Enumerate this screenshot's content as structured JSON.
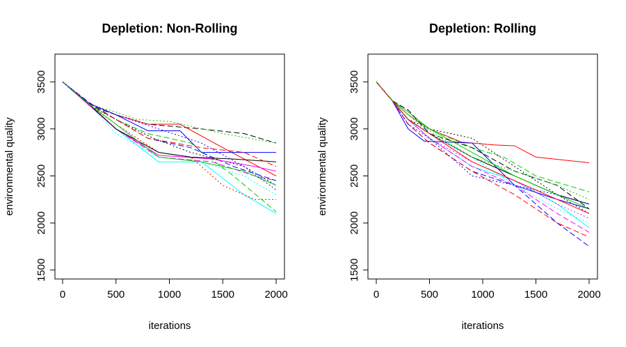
{
  "chart_data": [
    {
      "type": "line",
      "title": "Depletion: Non-Rolling",
      "xlabel": "iterations",
      "ylabel": "environmental quality",
      "xlim": [
        0,
        2000
      ],
      "ylim": [
        1500,
        3700
      ],
      "xticks": [
        "0",
        "500",
        "1000",
        "1500",
        "2000"
      ],
      "yticks": [
        "1500",
        "2000",
        "2500",
        "3000",
        "3500"
      ],
      "grid": false,
      "legend": "none",
      "series": [
        {
          "color": "#000000",
          "dash": "8,4",
          "x": [
            0,
            250,
            500,
            800,
            1300,
            1700,
            2000
          ],
          "y": [
            3500,
            3250,
            3150,
            3050,
            3000,
            2950,
            2850
          ]
        },
        {
          "color": "#ff0000",
          "dash": "",
          "x": [
            0,
            250,
            500,
            800,
            1100,
            1500,
            2000
          ],
          "y": [
            3500,
            3270,
            3150,
            3050,
            3050,
            2800,
            2500
          ]
        },
        {
          "color": "#00cd00",
          "dash": "2,3",
          "x": [
            0,
            250,
            500,
            700,
            1000,
            1500,
            2000
          ],
          "y": [
            3500,
            3260,
            3180,
            3100,
            3080,
            2950,
            2850
          ]
        },
        {
          "color": "#0000ff",
          "dash": "",
          "x": [
            0,
            250,
            500,
            800,
            1100,
            1300,
            2000
          ],
          "y": [
            3500,
            3270,
            3150,
            2980,
            2980,
            2750,
            2750
          ]
        },
        {
          "color": "#00ffff",
          "dash": "",
          "x": [
            0,
            250,
            500,
            900,
            1300,
            1700,
            2000
          ],
          "y": [
            3500,
            3260,
            3000,
            2650,
            2650,
            2300,
            2100
          ]
        },
        {
          "color": "#ff00ff",
          "dash": "8,4",
          "x": [
            0,
            250,
            500,
            900,
            1400,
            1800,
            2000
          ],
          "y": [
            3500,
            3250,
            3000,
            2700,
            2650,
            2500,
            2450
          ]
        },
        {
          "color": "#000000",
          "dash": "2,3",
          "x": [
            0,
            250,
            500,
            850,
            1200,
            1700,
            2000
          ],
          "y": [
            3500,
            3250,
            3100,
            2900,
            2750,
            2600,
            2400
          ]
        },
        {
          "color": "#ff0000",
          "dash": "2,3",
          "x": [
            0,
            250,
            500,
            900,
            1200,
            1500,
            1800,
            2000
          ],
          "y": [
            3500,
            3250,
            3050,
            2750,
            2700,
            2400,
            2250,
            2250
          ]
        },
        {
          "color": "#00cd00",
          "dash": "8,4",
          "x": [
            0,
            250,
            500,
            800,
            1200,
            1600,
            2000
          ],
          "y": [
            3500,
            3260,
            3100,
            2950,
            2850,
            2500,
            2120
          ]
        },
        {
          "color": "#0000ff",
          "dash": "8,4",
          "x": [
            0,
            250,
            500,
            800,
            1200,
            1600,
            2000
          ],
          "y": [
            3500,
            3280,
            3100,
            2900,
            2800,
            2600,
            2450
          ]
        },
        {
          "color": "#00ffff",
          "dash": "2,3",
          "x": [
            0,
            250,
            500,
            900,
            1300,
            1700,
            2000
          ],
          "y": [
            3500,
            3260,
            2950,
            2700,
            2650,
            2500,
            2300
          ]
        },
        {
          "color": "#ff00ff",
          "dash": "",
          "x": [
            0,
            250,
            500,
            900,
            1400,
            1800,
            2000
          ],
          "y": [
            3500,
            3250,
            3000,
            2720,
            2680,
            2600,
            2550
          ]
        },
        {
          "color": "#000000",
          "dash": "",
          "x": [
            0,
            250,
            500,
            900,
            1200,
            1600,
            2000
          ],
          "y": [
            3500,
            3260,
            3000,
            2750,
            2700,
            2680,
            2650
          ]
        },
        {
          "color": "#ff0000",
          "dash": "8,4",
          "x": [
            0,
            250,
            500,
            800,
            1300,
            1700,
            2000
          ],
          "y": [
            3500,
            3270,
            3100,
            2900,
            2800,
            2750,
            2600
          ]
        },
        {
          "color": "#00cd00",
          "dash": "",
          "x": [
            0,
            250,
            500,
            900,
            1300,
            1700,
            2000
          ],
          "y": [
            3500,
            3260,
            3050,
            2700,
            2650,
            2550,
            2400
          ]
        },
        {
          "color": "#0000ff",
          "dash": "2,3",
          "x": [
            0,
            250,
            500,
            900,
            1300,
            1700,
            2000
          ],
          "y": [
            3500,
            3270,
            3150,
            3000,
            2850,
            2600,
            2350
          ]
        }
      ]
    },
    {
      "type": "line",
      "title": "Depletion: Rolling",
      "xlabel": "iterations",
      "ylabel": "environmental quality",
      "xlim": [
        0,
        2000
      ],
      "ylim": [
        1500,
        3700
      ],
      "xticks": [
        "0",
        "500",
        "1000",
        "1500",
        "2000"
      ],
      "yticks": [
        "1500",
        "2000",
        "2500",
        "3000",
        "3500"
      ],
      "grid": false,
      "legend": "none",
      "series": [
        {
          "color": "#ff0000",
          "dash": "",
          "x": [
            0,
            150,
            300,
            500,
            800,
            1100,
            1300,
            1500,
            2000
          ],
          "y": [
            3500,
            3300,
            3150,
            3000,
            2860,
            2830,
            2820,
            2700,
            2640
          ]
        },
        {
          "color": "#0000ff",
          "dash": "8,4",
          "x": [
            0,
            150,
            300,
            500,
            900,
            1300,
            1700,
            2000
          ],
          "y": [
            3500,
            3300,
            3050,
            2850,
            2550,
            2400,
            2000,
            1750
          ]
        },
        {
          "color": "#00cd00",
          "dash": "8,4",
          "x": [
            0,
            150,
            300,
            500,
            900,
            1200,
            1500,
            2000
          ],
          "y": [
            3500,
            3300,
            3150,
            3000,
            2800,
            2700,
            2500,
            2330
          ]
        },
        {
          "color": "#000000",
          "dash": "",
          "x": [
            0,
            150,
            300,
            500,
            900,
            1300,
            1700,
            2000
          ],
          "y": [
            3500,
            3300,
            3100,
            2950,
            2700,
            2500,
            2300,
            2200
          ]
        },
        {
          "color": "#00ffff",
          "dash": "",
          "x": [
            0,
            150,
            300,
            500,
            900,
            1300,
            1700,
            2000
          ],
          "y": [
            3500,
            3300,
            3100,
            2900,
            2600,
            2450,
            2200,
            1950
          ]
        },
        {
          "color": "#ff00ff",
          "dash": "8,4",
          "x": [
            0,
            150,
            300,
            500,
            900,
            1300,
            1700,
            2000
          ],
          "y": [
            3500,
            3300,
            3100,
            2900,
            2600,
            2400,
            2100,
            1900
          ]
        },
        {
          "color": "#0000ff",
          "dash": "",
          "x": [
            0,
            150,
            300,
            450,
            900,
            1300,
            1700,
            2000
          ],
          "y": [
            3500,
            3300,
            3000,
            2870,
            2850,
            2400,
            2250,
            2150
          ]
        },
        {
          "color": "#000000",
          "dash": "2,3",
          "x": [
            0,
            150,
            300,
            500,
            900,
            1300,
            1700,
            2000
          ],
          "y": [
            3500,
            3300,
            3100,
            3000,
            2900,
            2600,
            2300,
            2100
          ]
        },
        {
          "color": "#ff0000",
          "dash": "8,4",
          "x": [
            0,
            150,
            300,
            500,
            900,
            1300,
            1700,
            2000
          ],
          "y": [
            3500,
            3300,
            3050,
            2850,
            2550,
            2300,
            2000,
            1850
          ]
        },
        {
          "color": "#00cd00",
          "dash": "",
          "x": [
            0,
            150,
            300,
            500,
            900,
            1300,
            1700,
            2000
          ],
          "y": [
            3500,
            3300,
            3180,
            3000,
            2750,
            2500,
            2300,
            2150
          ]
        },
        {
          "color": "#ff00ff",
          "dash": "2,3",
          "x": [
            0,
            150,
            300,
            500,
            900,
            1300,
            1700,
            2000
          ],
          "y": [
            3500,
            3300,
            3100,
            2900,
            2650,
            2450,
            2200,
            2050
          ]
        },
        {
          "color": "#00ffff",
          "dash": "2,3",
          "x": [
            0,
            150,
            300,
            500,
            900,
            1300,
            1700,
            2000
          ],
          "y": [
            3500,
            3300,
            3150,
            2950,
            2700,
            2400,
            2150,
            2000
          ]
        },
        {
          "color": "#000000",
          "dash": "8,4",
          "x": [
            0,
            150,
            300,
            500,
            900,
            1300,
            1700,
            2000
          ],
          "y": [
            3500,
            3300,
            3200,
            2950,
            2800,
            2550,
            2400,
            2150
          ]
        },
        {
          "color": "#0000ff",
          "dash": "2,3",
          "x": [
            0,
            150,
            300,
            500,
            900,
            1300,
            1700,
            2000
          ],
          "y": [
            3500,
            3300,
            3050,
            2900,
            2500,
            2400,
            2300,
            2200
          ]
        },
        {
          "color": "#ff0000",
          "dash": "",
          "x": [
            0,
            150,
            300,
            500,
            900,
            1300,
            1700,
            2000
          ],
          "y": [
            3500,
            3300,
            3100,
            2950,
            2650,
            2450,
            2250,
            2100
          ]
        },
        {
          "color": "#00cd00",
          "dash": "2,3",
          "x": [
            0,
            150,
            300,
            500,
            900,
            1300,
            1700,
            2000
          ],
          "y": [
            3500,
            3300,
            3150,
            2980,
            2700,
            2550,
            2400,
            2250
          ]
        }
      ]
    }
  ]
}
